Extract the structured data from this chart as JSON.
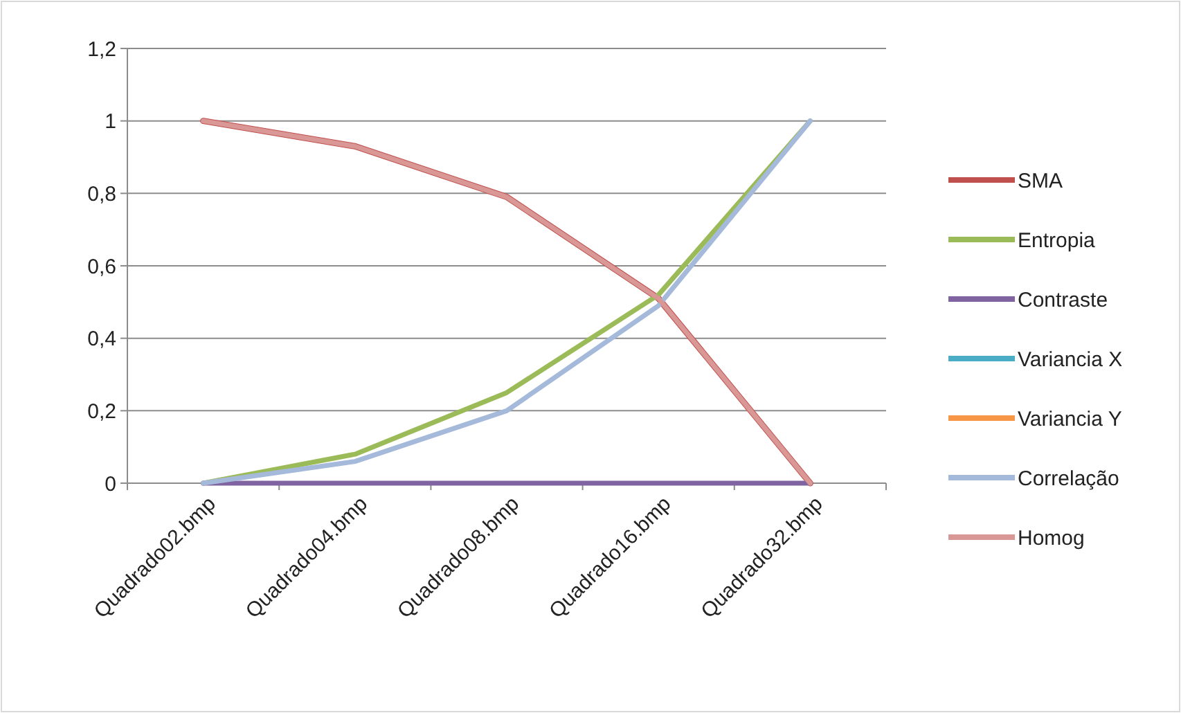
{
  "chart_data": {
    "type": "line",
    "categories": [
      "Quadrado02.bmp",
      "Quadrado04.bmp",
      "Quadrado08.bmp",
      "Quadrado16.bmp",
      "Quadrado32.bmp"
    ],
    "series": [
      {
        "name": "SMA",
        "color": "#c0504d",
        "values": [
          1,
          0.93,
          0.79,
          0.51,
          0
        ]
      },
      {
        "name": "Entropia",
        "color": "#9bbb59",
        "values": [
          0,
          0.08,
          0.25,
          0.52,
          1
        ]
      },
      {
        "name": "Contraste",
        "color": "#8064a2",
        "values": [
          0,
          0,
          0,
          0,
          0
        ]
      },
      {
        "name": "Variancia X",
        "color": "#4bacc6",
        "values": [
          null,
          null,
          null,
          null,
          null
        ]
      },
      {
        "name": "Variancia Y",
        "color": "#f79646",
        "values": [
          null,
          null,
          null,
          null,
          null
        ]
      },
      {
        "name": "Correlação",
        "color": "#a5b9db",
        "values": [
          0,
          0.06,
          0.2,
          0.49,
          1
        ]
      },
      {
        "name": "Homog",
        "color": "#d99795",
        "values": [
          1,
          0.93,
          0.79,
          0.51,
          0
        ]
      }
    ],
    "ylim": [
      0,
      1.2
    ],
    "yticks": [
      {
        "value": 0,
        "label": "0"
      },
      {
        "value": 0.2,
        "label": "0,2"
      },
      {
        "value": 0.4,
        "label": "0,4"
      },
      {
        "value": 0.6,
        "label": "0,6"
      },
      {
        "value": 0.8,
        "label": "0,8"
      },
      {
        "value": 1,
        "label": "1"
      },
      {
        "value": 1.2,
        "label": "1,2"
      }
    ],
    "grid": "y",
    "legend": "right",
    "marker": "none",
    "line_style": "solid"
  }
}
